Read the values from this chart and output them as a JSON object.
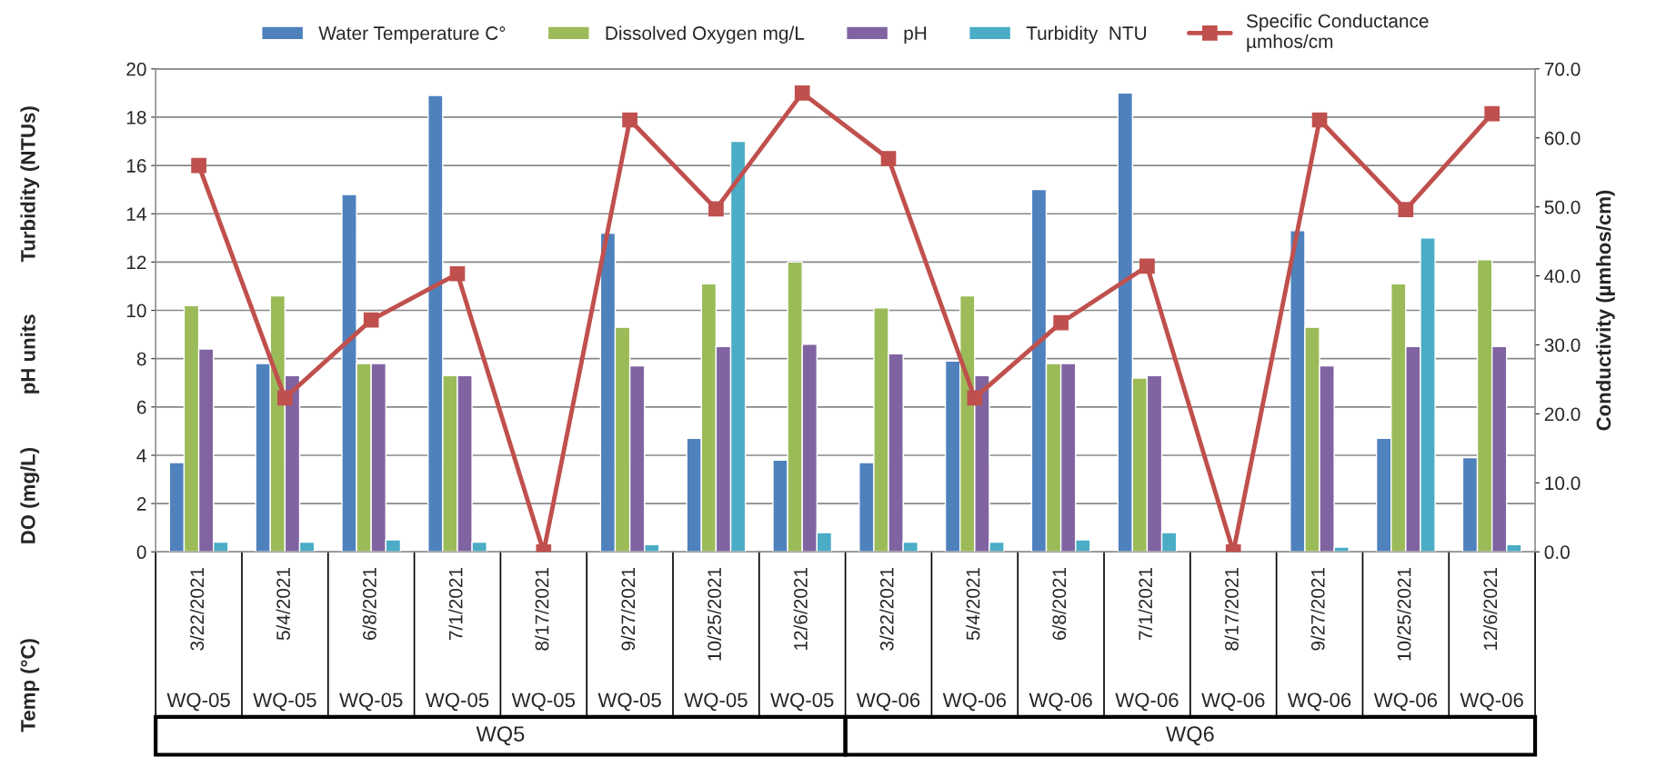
{
  "chart_data": {
    "type": "bar",
    "categories": [
      "3/22/2021",
      "5/4/2021",
      "6/8/2021",
      "7/1/2021",
      "8/17/2021",
      "9/27/2021",
      "10/25/2021",
      "12/6/2021",
      "3/22/2021",
      "5/4/2021",
      "6/8/2021",
      "7/1/2021",
      "8/17/2021",
      "9/27/2021",
      "10/25/2021",
      "12/6/2021"
    ],
    "series": [
      {
        "name": "Water Temperature C°",
        "color": "#4f81bd",
        "values": [
          3.7,
          7.8,
          14.8,
          18.9,
          null,
          13.2,
          4.7,
          3.8,
          3.7,
          7.9,
          15.0,
          19.0,
          null,
          13.3,
          4.7,
          3.9
        ]
      },
      {
        "name": "Dissolved Oxygen mg/L",
        "color": "#9bbb59",
        "values": [
          10.2,
          10.6,
          7.8,
          7.3,
          null,
          9.3,
          11.1,
          12.0,
          10.1,
          10.6,
          7.8,
          7.2,
          null,
          9.3,
          11.1,
          12.1
        ]
      },
      {
        "name": "pH",
        "color": "#8064a2",
        "values": [
          8.4,
          7.3,
          7.8,
          7.3,
          null,
          7.7,
          8.5,
          8.6,
          8.2,
          7.3,
          7.8,
          7.3,
          null,
          7.7,
          8.5,
          8.5
        ]
      },
      {
        "name": "Turbidity  NTU",
        "color": "#4bacc6",
        "values": [
          0.4,
          0.4,
          0.5,
          0.4,
          null,
          0.3,
          17.0,
          0.8,
          0.4,
          0.4,
          0.5,
          0.8,
          null,
          0.2,
          13.0,
          0.3
        ]
      },
      {
        "name": "Specific Conductance\nµmhos/cm",
        "type": "line",
        "axis": "y2",
        "color": "#c0504d",
        "marker": "square",
        "values": [
          56.0,
          22.3,
          33.6,
          40.3,
          0.0,
          62.6,
          49.7,
          66.5,
          57.0,
          22.3,
          33.2,
          41.4,
          0.0,
          62.6,
          49.6,
          63.5
        ]
      }
    ],
    "ylim": [
      0,
      20
    ],
    "yticks": [
      0,
      2,
      4,
      6,
      8,
      10,
      12,
      14,
      16,
      18,
      20
    ],
    "y2lim": [
      0,
      70
    ],
    "y2ticks": [
      {
        "value": 0,
        "label": "0.0"
      },
      {
        "value": 10,
        "label": "10.0"
      },
      {
        "value": 20,
        "label": "20.0"
      },
      {
        "value": 30,
        "label": "30.0"
      },
      {
        "value": 40,
        "label": "40.0"
      },
      {
        "value": 50,
        "label": "50.0"
      },
      {
        "value": 60,
        "label": "60.0"
      },
      {
        "value": 70,
        "label": "70.0"
      }
    ],
    "y2label": "Conductivity (µmhos/cm)",
    "annotations": [
      "Turbidity (NTUs)",
      "pH units",
      "DO (mg/L)",
      "Temp (°C)",
      "WQ-05",
      "WQ-05",
      "WQ-05",
      "WQ-05",
      "WQ-05",
      "WQ-05",
      "WQ-05",
      "WQ-05",
      "WQ-06",
      "WQ-06",
      "WQ-06",
      "WQ-06",
      "WQ-06",
      "WQ-06",
      "WQ-06",
      "WQ-06",
      "WQ5",
      "WQ6"
    ],
    "grid": "y",
    "legend": "top",
    "line_style": "solid"
  }
}
